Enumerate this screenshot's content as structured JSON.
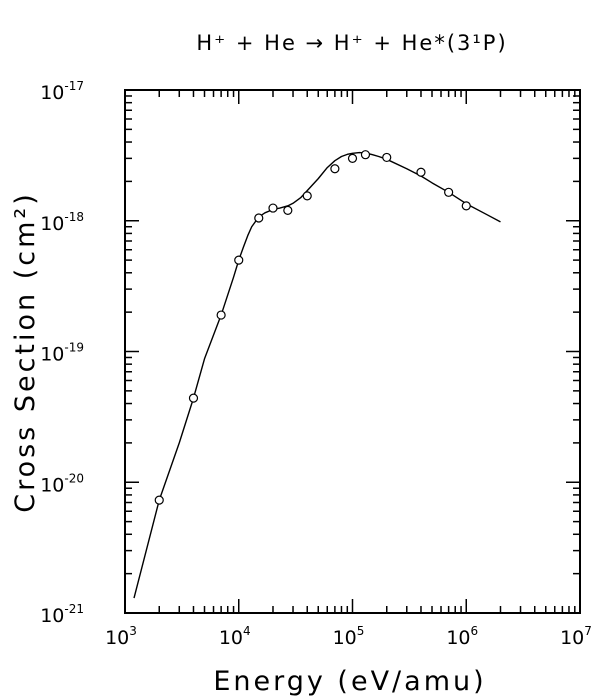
{
  "chart_data": {
    "type": "scatter",
    "title": "H⁺ + He → H⁺ + He*(3¹P)",
    "xlabel": "Energy (eV/amu)",
    "ylabel": "Cross Section (cm²)",
    "x_scale": "log",
    "y_scale": "log",
    "xlim": [
      1000,
      10000000
    ],
    "ylim": [
      1e-21,
      1e-17
    ],
    "x_ticks": [
      {
        "value": 1000,
        "base": "10",
        "exp": "3"
      },
      {
        "value": 10000,
        "base": "10",
        "exp": "4"
      },
      {
        "value": 100000,
        "base": "10",
        "exp": "5"
      },
      {
        "value": 1000000,
        "base": "10",
        "exp": "6"
      },
      {
        "value": 10000000,
        "base": "10",
        "exp": "7"
      }
    ],
    "y_ticks": [
      {
        "value": 1e-21,
        "base": "10",
        "exp": "-21"
      },
      {
        "value": 1e-20,
        "base": "10",
        "exp": "-20"
      },
      {
        "value": 1e-19,
        "base": "10",
        "exp": "-19"
      },
      {
        "value": 1e-18,
        "base": "10",
        "exp": "-18"
      },
      {
        "value": 1e-17,
        "base": "10",
        "exp": "-17"
      }
    ],
    "grid": false,
    "series": [
      {
        "kind": "points",
        "marker": "open-circle",
        "x": [
          2000,
          4000,
          7000,
          10000,
          15000,
          20000,
          27000,
          40000,
          70000,
          100000,
          130000,
          200000,
          400000,
          700000,
          1000000
        ],
        "y": [
          7.3e-21,
          4.4e-20,
          1.9e-19,
          5e-19,
          1.05e-18,
          1.25e-18,
          1.2e-18,
          1.55e-18,
          2.5e-18,
          3e-18,
          3.2e-18,
          3.05e-18,
          2.35e-18,
          1.65e-18,
          1.3e-18
        ]
      },
      {
        "kind": "line",
        "x": [
          1200,
          2000,
          3000,
          4000,
          5000,
          7000,
          9000,
          10000,
          11000,
          12000,
          13000,
          15000,
          17000,
          20000,
          23000,
          27000,
          30000,
          35000,
          40000,
          50000,
          60000,
          70000,
          80000,
          90000,
          100000,
          115000,
          130000,
          150000,
          170000,
          200000,
          300000,
          400000,
          500000,
          700000,
          1000000,
          1500000,
          2000000
        ],
        "y": [
          1.3e-21,
          7.3e-21,
          2e-20,
          4.4e-20,
          8.8e-20,
          1.9e-19,
          3.7e-19,
          5e-19,
          6.3e-19,
          7.7e-19,
          9e-19,
          1.07e-18,
          1.15e-18,
          1.22e-18,
          1.25e-18,
          1.3e-18,
          1.36e-18,
          1.5e-18,
          1.7e-18,
          2.1e-18,
          2.55e-18,
          2.88e-18,
          3.1e-18,
          3.22e-18,
          3.28e-18,
          3.32e-18,
          3.3e-18,
          3.2e-18,
          3.1e-18,
          2.95e-18,
          2.5e-18,
          2.2e-18,
          1.95e-18,
          1.65e-18,
          1.35e-18,
          1.12e-18,
          9.8e-19
        ]
      }
    ]
  }
}
